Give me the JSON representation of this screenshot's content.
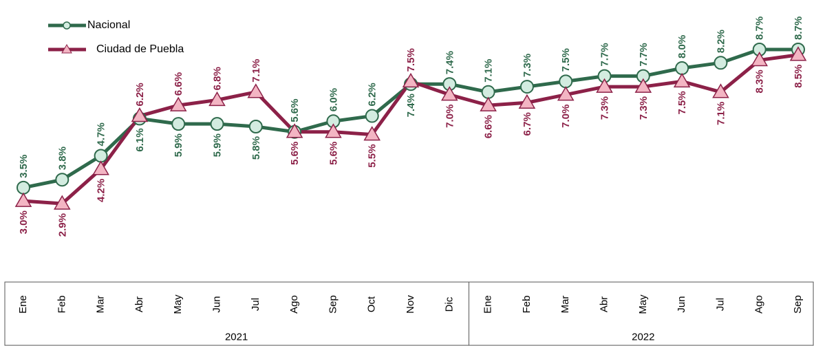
{
  "chart_data": {
    "type": "line",
    "groups": [
      {
        "label": "2021",
        "months": [
          "Ene",
          "Feb",
          "Mar",
          "Abr",
          "May",
          "Jun",
          "Jul",
          "Ago",
          "Sep",
          "Oct",
          "Nov",
          "Dic"
        ]
      },
      {
        "label": "2022",
        "months": [
          "Ene",
          "Feb",
          "Mar",
          "Abr",
          "May",
          "Jun",
          "Jul",
          "Ago",
          "Sep"
        ]
      }
    ],
    "series": [
      {
        "name": "Nacional",
        "color": "#2f6a4c",
        "marker": "circle",
        "marker_color": "#d3ece0",
        "values": [
          3.5,
          3.8,
          4.7,
          6.1,
          5.9,
          5.9,
          5.8,
          5.6,
          6.0,
          6.2,
          7.4,
          7.4,
          7.1,
          7.3,
          7.5,
          7.7,
          7.7,
          8.0,
          8.2,
          8.7,
          8.7
        ],
        "value_labels": [
          "3.5%",
          "3.8%",
          "4.7%",
          "6.1%",
          "5.9%",
          "5.9%",
          "5.8%",
          "5.6%",
          "6.0%",
          "6.2%",
          "7.4%",
          "7.4%",
          "7.1%",
          "7.3%",
          "7.5%",
          "7.7%",
          "7.7%",
          "8.0%",
          "8.2%",
          "8.7%",
          "8.7%"
        ]
      },
      {
        "name": "Ciudad de Puebla",
        "color": "#8c2148",
        "marker": "triangle",
        "marker_color": "#f3b5c3",
        "values": [
          3.0,
          2.9,
          4.2,
          6.2,
          6.6,
          6.8,
          7.1,
          5.6,
          5.6,
          5.5,
          7.5,
          7.0,
          6.6,
          6.7,
          7.0,
          7.3,
          7.3,
          7.5,
          7.1,
          8.3,
          8.5
        ],
        "value_labels": [
          "3.0%",
          "2.9%",
          "4.2%",
          "6.2%",
          "6.6%",
          "6.8%",
          "7.1%",
          "5.6%",
          "5.6%",
          "5.5%",
          "7.5%",
          "7.0%",
          "6.6%",
          "6.7%",
          "7.0%",
          "7.3%",
          "7.3%",
          "7.5%",
          "7.1%",
          "8.3%",
          "8.5%"
        ]
      }
    ]
  }
}
